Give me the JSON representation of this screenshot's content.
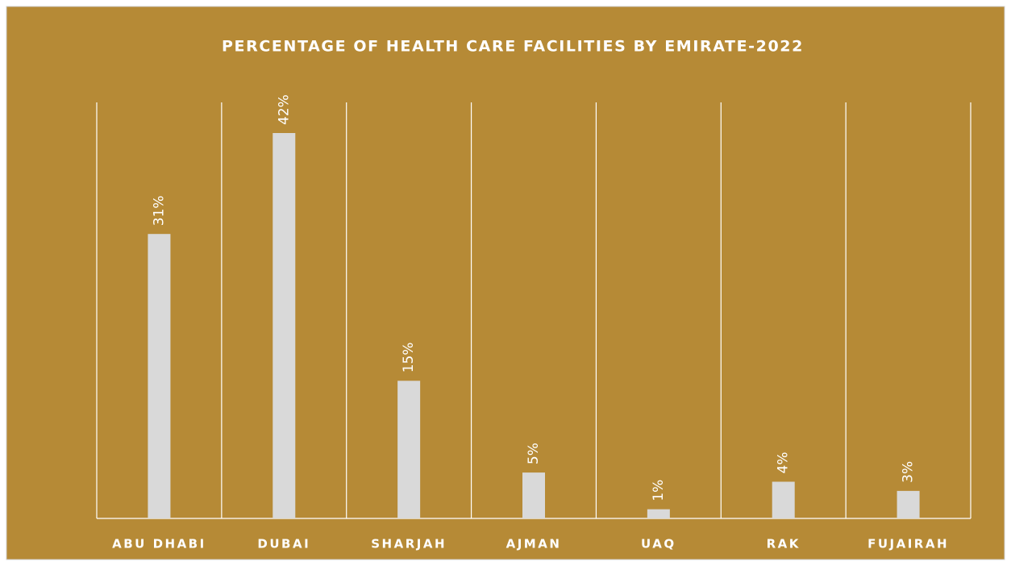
{
  "chart_data": {
    "type": "bar",
    "title": "PERCENTAGE OF HEALTH CARE FACILITIES BY EMIRATE-2022",
    "categories": [
      "ABU DHABI",
      "DUBAI",
      "SHARJAH",
      "AJMAN",
      "UAQ",
      "RAK",
      "FUJAIRAH"
    ],
    "values": [
      31,
      42,
      15,
      5,
      1,
      4,
      3
    ],
    "value_labels": [
      "31%",
      "42%",
      "15%",
      "5%",
      "1%",
      "4%",
      "3%"
    ],
    "color": "#d9d9d9",
    "background": "#b68a36"
  }
}
